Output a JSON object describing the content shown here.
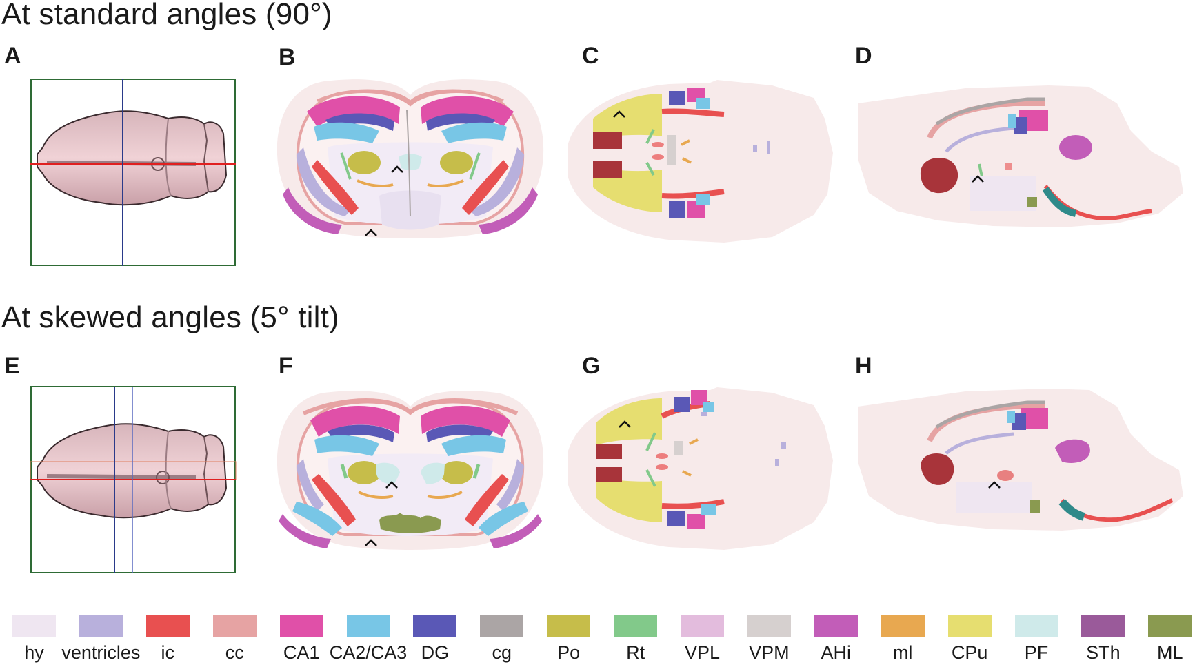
{
  "sections": {
    "standard_title": "At standard angles (90°)",
    "skewed_title": "At skewed angles (5° tilt)"
  },
  "panels": {
    "A": "A",
    "B": "B",
    "C": "C",
    "D": "D",
    "E": "E",
    "F": "F",
    "G": "G",
    "H": "H"
  },
  "legend": [
    {
      "label": "hy",
      "color": "#efe6f1"
    },
    {
      "label": "ventricles",
      "color": "#b8b0dc"
    },
    {
      "label": "ic",
      "color": "#e85050"
    },
    {
      "label": "cc",
      "color": "#e6a3a3"
    },
    {
      "label": "CA1",
      "color": "#e050a8"
    },
    {
      "label": "CA2/CA3",
      "color": "#78c6e6"
    },
    {
      "label": "DG",
      "color": "#5a58b6"
    },
    {
      "label": "cg",
      "color": "#aba5a5"
    },
    {
      "label": "Po",
      "color": "#c6bd4a"
    },
    {
      "label": "Rt",
      "color": "#82c98a"
    },
    {
      "label": "VPL",
      "color": "#e3bcdd"
    },
    {
      "label": "VPM",
      "color": "#d6d0cf"
    },
    {
      "label": "AHi",
      "color": "#c25db8"
    },
    {
      "label": "ml",
      "color": "#e8a850"
    },
    {
      "label": "CPu",
      "color": "#e6de70"
    },
    {
      "label": "PF",
      "color": "#cfeaea"
    },
    {
      "label": "STh",
      "color": "#9a5a9a"
    },
    {
      "label": "ML",
      "color": "#8a9a50"
    }
  ]
}
